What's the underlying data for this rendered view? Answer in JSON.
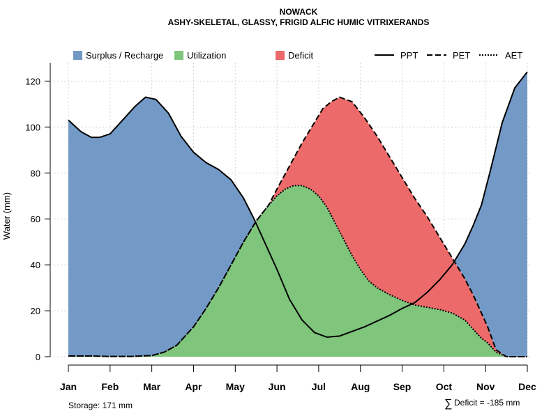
{
  "chart_data": {
    "type": "area",
    "title": "NOWACK",
    "subtitle": "ASHY-SKELETAL, GLASSY, FRIGID ALFIC HUMIC VITRIXERANDS",
    "ylabel": "Water (mm)",
    "xlabel": "",
    "ylim": [
      0,
      128
    ],
    "yticks": [
      0,
      20,
      40,
      60,
      80,
      100,
      120
    ],
    "ytick_labels": [
      "0",
      "20",
      "40",
      "60",
      "80",
      "100",
      "120"
    ],
    "categories": [
      "Jan",
      "Feb",
      "Mar",
      "Apr",
      "May",
      "Jun",
      "Jul",
      "Aug",
      "Sep",
      "Oct",
      "Nov",
      "Dec"
    ],
    "grid": true,
    "legend_position": "top",
    "legend_areas": [
      {
        "label": "Surplus / Recharge",
        "color": "#7399c6"
      },
      {
        "label": "Utilization",
        "color": "#7fc57c"
      },
      {
        "label": "Deficit",
        "color": "#ec6a6a"
      }
    ],
    "legend_lines": [
      {
        "label": "PPT",
        "dash": "solid"
      },
      {
        "label": "PET",
        "dash": "dashed"
      },
      {
        "label": "AET",
        "dash": "dotted"
      }
    ],
    "series": [
      {
        "name": "PPT",
        "x": [
          0,
          0.3,
          0.55,
          0.75,
          1,
          1.3,
          1.6,
          1.85,
          2.1,
          2.4,
          2.7,
          3,
          3.3,
          3.6,
          3.9,
          4.2,
          4.45,
          4.7,
          5,
          5.3,
          5.6,
          5.9,
          6.2,
          6.5,
          6.8,
          7.1,
          7.4,
          7.7,
          8,
          8.3,
          8.6,
          8.9,
          9.2,
          9.5,
          9.7,
          9.9,
          10.1,
          10.4,
          10.7,
          11
        ],
        "values": [
          103,
          98,
          95.5,
          95.5,
          97,
          103,
          109,
          113,
          112,
          106,
          96,
          89,
          84.5,
          81.5,
          77,
          69,
          60,
          50,
          38,
          25,
          16,
          10.5,
          8.5,
          9,
          11,
          13,
          15.5,
          18,
          21,
          23.5,
          28,
          33.5,
          40,
          49,
          57,
          66,
          80,
          102,
          117,
          124
        ]
      },
      {
        "name": "PET",
        "x": [
          0,
          0.5,
          1,
          1.5,
          2,
          2.3,
          2.6,
          3,
          3.3,
          3.6,
          3.9,
          4.2,
          4.5,
          4.8,
          5,
          5.3,
          5.6,
          5.9,
          6.1,
          6.3,
          6.5,
          6.8,
          7.1,
          7.4,
          7.7,
          8,
          8.3,
          8.6,
          8.9,
          9.2,
          9.5,
          9.7,
          9.9,
          10.05,
          10.15,
          10.25,
          10.5,
          11
        ],
        "values": [
          0.3,
          0.3,
          0.1,
          0.1,
          0.5,
          2,
          5,
          13,
          21,
          30,
          40,
          50,
          59,
          66,
          73,
          83,
          93,
          102,
          108,
          111,
          113,
          111,
          104,
          96,
          87,
          78,
          69,
          61,
          52,
          43,
          34,
          27,
          19,
          13,
          8,
          3,
          0,
          0
        ]
      },
      {
        "name": "AET",
        "x": [
          0,
          0.5,
          1,
          1.5,
          2,
          2.3,
          2.6,
          3,
          3.3,
          3.6,
          3.9,
          4.2,
          4.5,
          4.8,
          5,
          5.2,
          5.4,
          5.6,
          5.8,
          6,
          6.2,
          6.4,
          6.6,
          6.8,
          7,
          7.2,
          7.4,
          7.7,
          8,
          8.3,
          8.6,
          8.9,
          9.2,
          9.5,
          9.7,
          9.9,
          10.05,
          10.15,
          10.25,
          10.5,
          11
        ],
        "values": [
          0.3,
          0.3,
          0.1,
          0.1,
          0.5,
          2,
          5,
          13,
          21,
          30,
          40,
          50,
          59,
          66,
          70,
          73,
          74.5,
          74.5,
          73,
          70,
          65,
          58,
          51,
          44,
          38,
          33,
          30,
          27,
          24.5,
          22.5,
          21.5,
          20.5,
          19,
          16,
          12,
          8,
          6,
          4,
          2,
          0,
          0
        ]
      }
    ],
    "annotations": {
      "storage": "Storage: 171 mm",
      "deficit_symbol": "∑",
      "deficit": "Deficit = -185 mm"
    }
  }
}
